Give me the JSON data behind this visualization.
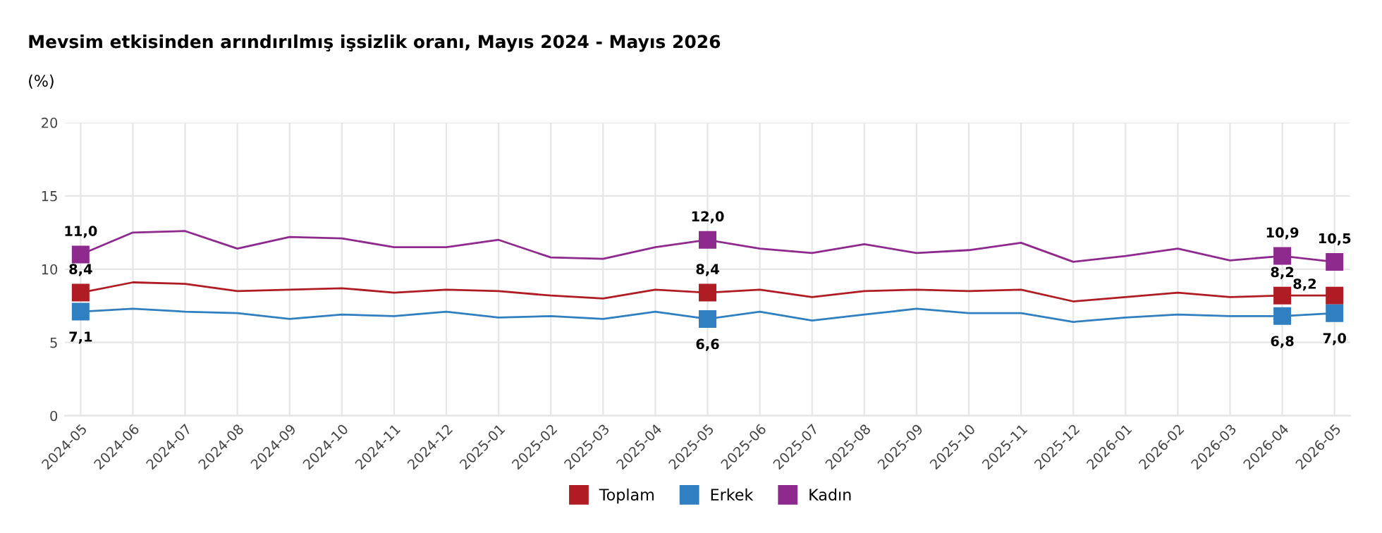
{
  "chart_data": {
    "type": "line",
    "title": "Mevsim etkisinden arındırılmış işsizlik oranı, Mayıs 2024 - Mayıs 2026",
    "subtitle": "(%)",
    "categories": [
      "2024-05",
      "2024-06",
      "2024-07",
      "2024-08",
      "2024-09",
      "2024-10",
      "2024-11",
      "2024-12",
      "2025-01",
      "2025-02",
      "2025-03",
      "2025-04",
      "2025-05",
      "2025-06",
      "2025-07",
      "2025-08",
      "2025-09",
      "2025-10",
      "2025-11",
      "2025-12",
      "2026-01",
      "2026-02",
      "2026-03",
      "2026-04",
      "2026-05"
    ],
    "series": [
      {
        "name": "Toplam",
        "color": "#b01c24",
        "values": [
          8.4,
          9.1,
          9.0,
          8.5,
          8.6,
          8.7,
          8.4,
          8.6,
          8.5,
          8.2,
          8.0,
          8.6,
          8.4,
          8.6,
          8.1,
          8.5,
          8.6,
          8.5,
          8.6,
          7.8,
          8.1,
          8.4,
          8.1,
          8.2,
          8.2
        ],
        "value_labels": [
          "8,4",
          null,
          null,
          null,
          null,
          null,
          null,
          null,
          null,
          null,
          null,
          null,
          "8,4",
          null,
          null,
          null,
          null,
          null,
          null,
          null,
          null,
          null,
          null,
          "8,2",
          "8,2"
        ]
      },
      {
        "name": "Erkek",
        "color": "#2f7fc1",
        "values": [
          7.1,
          7.3,
          7.1,
          7.0,
          6.6,
          6.9,
          6.8,
          7.1,
          6.7,
          6.8,
          6.6,
          7.1,
          6.6,
          7.1,
          6.5,
          6.9,
          7.3,
          7.0,
          7.0,
          6.4,
          6.7,
          6.9,
          6.8,
          6.8,
          7.0
        ],
        "value_labels": [
          "7,1",
          null,
          null,
          null,
          null,
          null,
          null,
          null,
          null,
          null,
          null,
          null,
          "6,6",
          null,
          null,
          null,
          null,
          null,
          null,
          null,
          null,
          null,
          null,
          "6,8",
          "7,0"
        ]
      },
      {
        "name": "Kadın",
        "color": "#8e2a8e",
        "values": [
          11.0,
          12.5,
          12.6,
          11.4,
          12.2,
          12.1,
          11.5,
          11.5,
          12.0,
          10.8,
          10.7,
          11.5,
          12.0,
          11.4,
          11.1,
          11.7,
          11.1,
          11.3,
          11.8,
          10.5,
          10.9,
          11.4,
          10.6,
          10.9,
          10.5
        ],
        "value_labels": [
          "11,0",
          null,
          null,
          null,
          null,
          null,
          null,
          null,
          null,
          null,
          null,
          null,
          "12,0",
          null,
          null,
          null,
          null,
          null,
          null,
          null,
          null,
          null,
          null,
          "10,9",
          "10,5"
        ]
      }
    ],
    "ylim": [
      0,
      20
    ],
    "yticks": [
      0,
      5,
      10,
      15,
      20
    ],
    "grid": true,
    "legend": "bottom",
    "line_style": "solid"
  }
}
